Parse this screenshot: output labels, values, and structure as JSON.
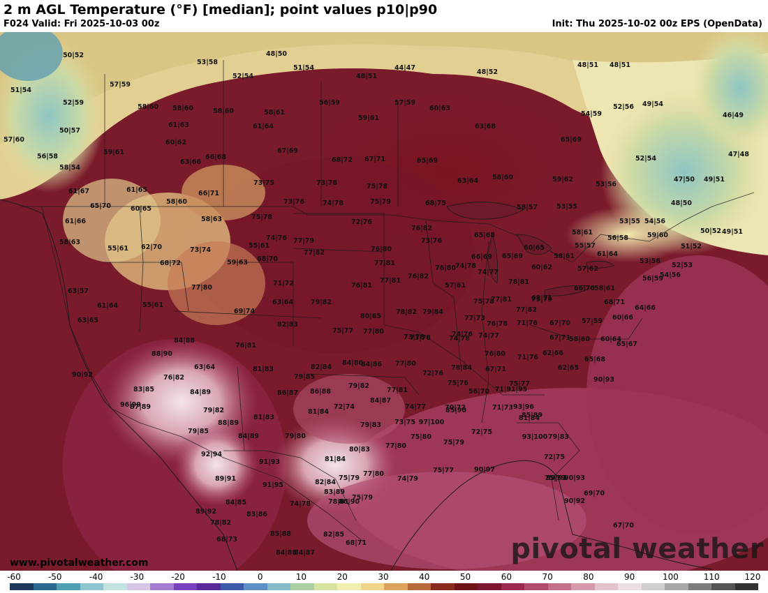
{
  "header": {
    "title": "2 m AGL Temperature (°F) [median]; point values p10|p90",
    "valid": "F024 Valid: Fri 2025-10-03 00z",
    "init": "Init: Thu 2025-10-02 00z EPS (OpenData)"
  },
  "map": {
    "brand": "pivotal weather",
    "site": "www.pivotalweather.com",
    "point_values": [
      "50|52",
      "48|50",
      "53|58",
      "51|54",
      "44|47",
      "48|52",
      "48|51",
      "48|51",
      "51|54",
      "57|59",
      "52|54",
      "48|51",
      "52|59",
      "58|60",
      "58|60",
      "58|60",
      "58|61",
      "56|59",
      "57|59",
      "60|63",
      "54|59",
      "52|56",
      "49|54",
      "46|49",
      "50|57",
      "61|63",
      "61|64",
      "59|61",
      "63|68",
      "65|69",
      "57|60",
      "60|62",
      "67|69",
      "56|58",
      "59|61",
      "63|66",
      "66|68",
      "68|72",
      "67|71",
      "65|69",
      "52|54",
      "47|48",
      "58|54",
      "63|64",
      "58|60",
      "59|62",
      "53|56",
      "47|50",
      "49|51",
      "61|67",
      "61|65",
      "66|71",
      "73|75",
      "73|78",
      "75|78",
      "68|75",
      "65|70",
      "60|65",
      "58|60",
      "73|76",
      "74|78",
      "75|79",
      "58|57",
      "53|55",
      "48|50",
      "61|66",
      "58|63",
      "75|78",
      "72|76",
      "76|82",
      "53|55",
      "54|56",
      "49|51",
      "50|52",
      "58|63",
      "55|61",
      "62|70",
      "73|74",
      "74|76",
      "77|79",
      "73|76",
      "65|68",
      "58|61",
      "56|58",
      "59|60",
      "51|52",
      "55|61",
      "77|82",
      "76|80",
      "60|65",
      "55|57",
      "61|64",
      "68|72",
      "59|63",
      "68|70",
      "77|81",
      "76|80",
      "74|78",
      "66|69",
      "65|69",
      "58|61",
      "53|56",
      "52|53",
      "60|62",
      "57|62",
      "54|56",
      "63|57",
      "77|80",
      "71|72",
      "76|81",
      "77|81",
      "76|82",
      "74|77",
      "56|59",
      "57|61",
      "78|81",
      "68|71",
      "66|70",
      "58|61",
      "61|64",
      "55|61",
      "63|64",
      "79|82",
      "75|78",
      "77|81",
      "75|79",
      "68|71",
      "64|66",
      "63|65",
      "69|74",
      "80|85",
      "78|82",
      "79|84",
      "77|82",
      "77|73",
      "76|78",
      "60|66",
      "82|83",
      "75|77",
      "77|80",
      "74|77",
      "71|76",
      "67|70",
      "57|59",
      "67|71",
      "74|76",
      "84|88",
      "73|78",
      "74|78",
      "58|60",
      "60|64",
      "65|67",
      "88|90",
      "76|81",
      "73|78",
      "76|80",
      "71|76",
      "62|66",
      "84|86",
      "63|64",
      "82|84",
      "84|86",
      "77|80",
      "78|84",
      "62|65",
      "65|68",
      "90|93",
      "76|82",
      "81|83",
      "79|85",
      "72|76",
      "67|71",
      "75|77",
      "90|92",
      "83|85",
      "79|82",
      "77|81",
      "75|76",
      "56|70",
      "71|91|95",
      "96|99",
      "84|89",
      "86|87",
      "86|88",
      "84|87",
      "74|77",
      "70|72",
      "71|73",
      "93|96",
      "87|89",
      "79|82",
      "72|74",
      "85|90",
      "85|89",
      "88|89",
      "81|83",
      "81|84",
      "79|83",
      "73|75",
      "97|100",
      "81|84",
      "79|85",
      "84|89",
      "79|80",
      "77|80",
      "75|80",
      "75|79",
      "72|75",
      "93|100",
      "79|83",
      "92|94",
      "91|93",
      "81|84",
      "80|83",
      "77|80",
      "75|77",
      "90|97",
      "72|75",
      "89|91",
      "91|95",
      "82|84",
      "75|79",
      "74|79",
      "89|93",
      "84|85",
      "83|89",
      "86|90",
      "75|79",
      "75|79",
      "90|93",
      "89|92",
      "83|86",
      "74|78",
      "78|81",
      "90|92",
      "69|70",
      "78|82",
      "85|88",
      "84|87",
      "67|70",
      "68|73",
      "84|88",
      "82|85",
      "68|71"
    ]
  },
  "colorbar": {
    "ticks": [
      "-60",
      "-50",
      "-40",
      "-30",
      "-20",
      "-10",
      "0",
      "10",
      "20",
      "30",
      "40",
      "50",
      "60",
      "70",
      "80",
      "90",
      "100",
      "110",
      "120"
    ],
    "colors": [
      "#1d3a5c",
      "#2b6a8e",
      "#4f9fb5",
      "#8cc7cf",
      "#c2e4e0",
      "#d7c7e6",
      "#a37bd0",
      "#7a3fbf",
      "#5a2a9a",
      "#3d5aa8",
      "#5e8fc7",
      "#86b9c9",
      "#a9cfa3",
      "#d7e4a0",
      "#f1efb0",
      "#efd48a",
      "#dba35c",
      "#b86a3a",
      "#8a2a1e",
      "#6e1418",
      "#7d1631",
      "#9a2a52",
      "#b04a6e",
      "#c47088",
      "#d69aaa",
      "#e3c2c9",
      "#ebdfe2",
      "#cfcfcf",
      "#a8a8a8",
      "#7d7d7d",
      "#555555",
      "#333333"
    ]
  }
}
